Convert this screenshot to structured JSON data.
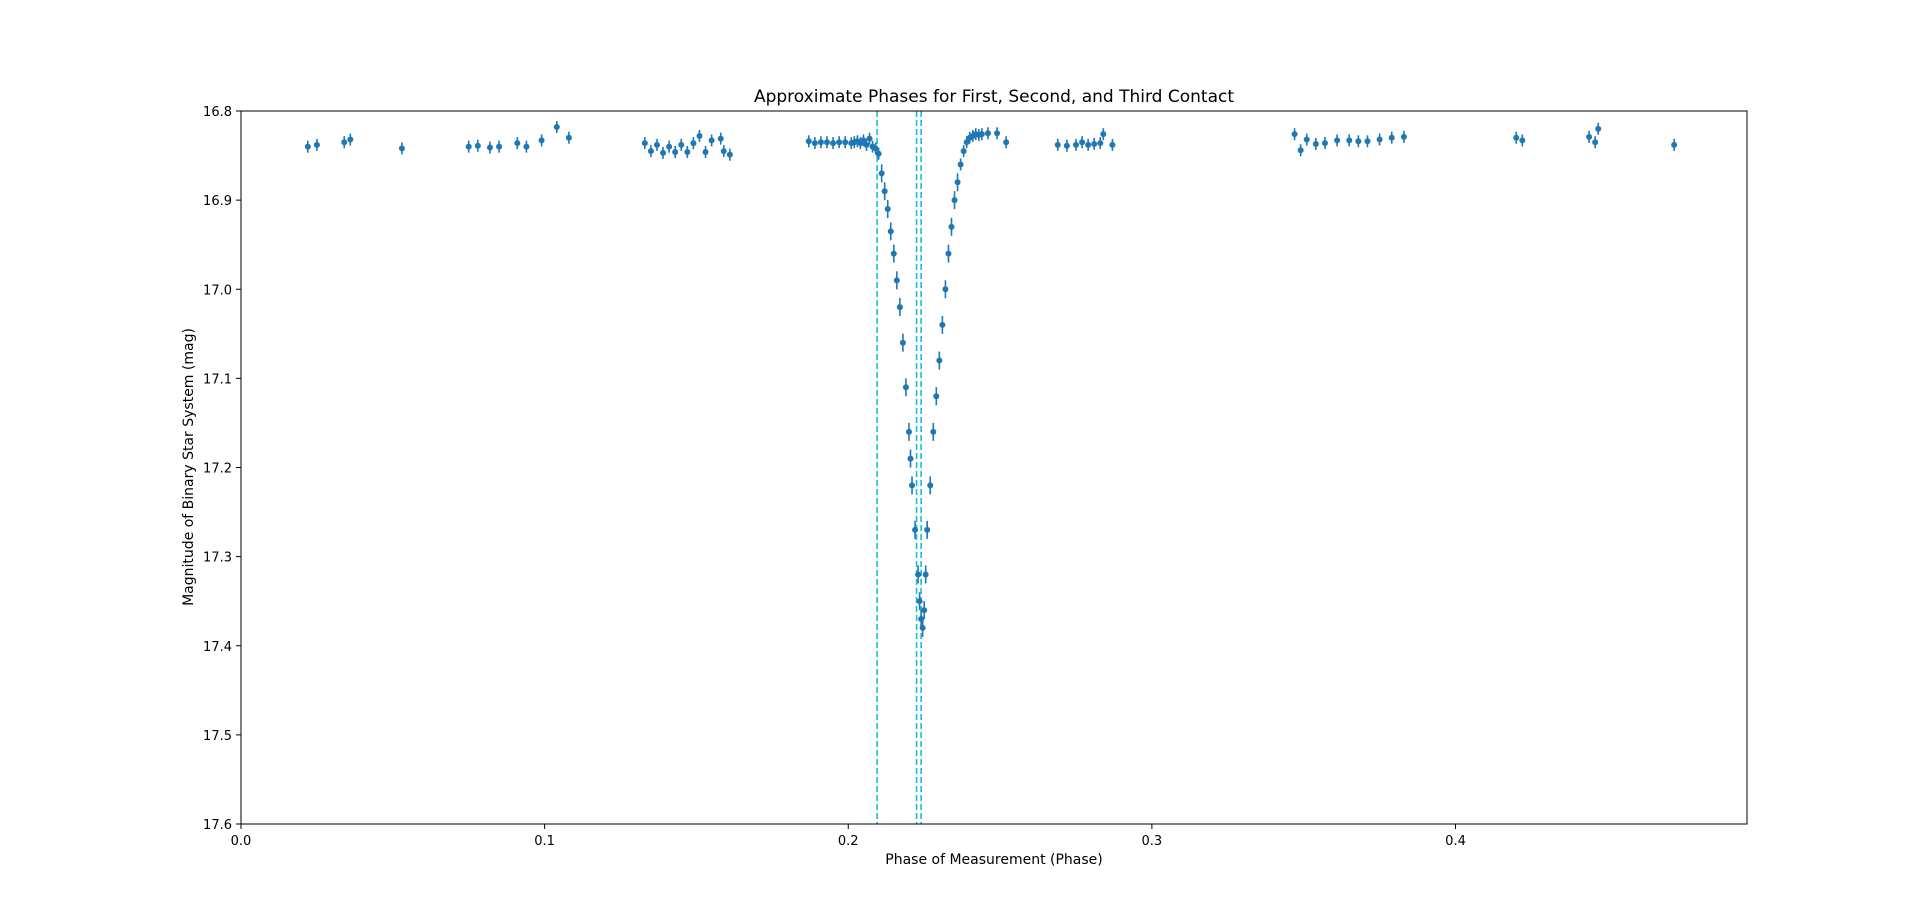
{
  "chart_data": {
    "type": "scatter",
    "title": "Approximate Phases for First, Second, and Third Contact",
    "xlabel": "Phase of Measurement (Phase)",
    "ylabel": "Magnitude of Binary Star System (mag)",
    "xlim": [
      0.0,
      0.496
    ],
    "ylim": [
      16.8,
      17.6
    ],
    "y_inverted": true,
    "x_ticks": [
      "0.0",
      "0.1",
      "0.2",
      "0.3",
      "0.4"
    ],
    "y_ticks": [
      "16.8",
      "16.9",
      "17.0",
      "17.1",
      "17.2",
      "17.3",
      "17.4",
      "17.5",
      "17.6"
    ],
    "grid": false,
    "legend": "none",
    "colors": {
      "points": "#1f77b4",
      "contact_lines": "#17becf"
    },
    "contact_lines": [
      0.2095,
      0.2225,
      0.224
    ],
    "series": [
      {
        "points": [
          [
            0.022,
            16.84
          ],
          [
            0.025,
            16.838
          ],
          [
            0.034,
            16.835
          ],
          [
            0.036,
            16.832
          ],
          [
            0.053,
            16.842
          ],
          [
            0.075,
            16.84
          ],
          [
            0.078,
            16.839
          ],
          [
            0.082,
            16.841
          ],
          [
            0.085,
            16.84
          ],
          [
            0.091,
            16.836
          ],
          [
            0.094,
            16.84
          ],
          [
            0.099,
            16.833
          ],
          [
            0.104,
            16.818
          ],
          [
            0.108,
            16.83
          ],
          [
            0.133,
            16.836
          ],
          [
            0.135,
            16.845
          ],
          [
            0.137,
            16.838
          ],
          [
            0.139,
            16.847
          ],
          [
            0.141,
            16.84
          ],
          [
            0.143,
            16.846
          ],
          [
            0.145,
            16.838
          ],
          [
            0.147,
            16.846
          ],
          [
            0.149,
            16.836
          ],
          [
            0.151,
            16.828
          ],
          [
            0.153,
            16.846
          ],
          [
            0.155,
            16.833
          ],
          [
            0.158,
            16.831
          ],
          [
            0.159,
            16.845
          ],
          [
            0.161,
            16.849
          ],
          [
            0.187,
            16.834
          ],
          [
            0.189,
            16.836
          ],
          [
            0.191,
            16.835
          ],
          [
            0.193,
            16.835
          ],
          [
            0.195,
            16.836
          ],
          [
            0.197,
            16.835
          ],
          [
            0.199,
            16.835
          ],
          [
            0.201,
            16.836
          ],
          [
            0.202,
            16.835
          ],
          [
            0.203,
            16.834
          ],
          [
            0.204,
            16.836
          ],
          [
            0.205,
            16.833
          ],
          [
            0.206,
            16.838
          ],
          [
            0.207,
            16.831
          ],
          [
            0.208,
            16.84
          ],
          [
            0.209,
            16.842
          ],
          [
            0.21,
            16.848
          ],
          [
            0.211,
            16.87
          ],
          [
            0.212,
            16.89
          ],
          [
            0.213,
            16.91
          ],
          [
            0.214,
            16.935
          ],
          [
            0.215,
            16.96
          ],
          [
            0.216,
            16.99
          ],
          [
            0.217,
            17.02
          ],
          [
            0.218,
            17.06
          ],
          [
            0.219,
            17.11
          ],
          [
            0.22,
            17.16
          ],
          [
            0.2205,
            17.19
          ],
          [
            0.221,
            17.22
          ],
          [
            0.222,
            17.27
          ],
          [
            0.223,
            17.32
          ],
          [
            0.2235,
            17.35
          ],
          [
            0.224,
            17.37
          ],
          [
            0.2245,
            17.38
          ],
          [
            0.225,
            17.36
          ],
          [
            0.2255,
            17.32
          ],
          [
            0.226,
            17.27
          ],
          [
            0.227,
            17.22
          ],
          [
            0.228,
            17.16
          ],
          [
            0.229,
            17.12
          ],
          [
            0.23,
            17.08
          ],
          [
            0.231,
            17.04
          ],
          [
            0.232,
            17.0
          ],
          [
            0.233,
            16.96
          ],
          [
            0.234,
            16.93
          ],
          [
            0.235,
            16.9
          ],
          [
            0.236,
            16.88
          ],
          [
            0.237,
            16.86
          ],
          [
            0.238,
            16.845
          ],
          [
            0.239,
            16.835
          ],
          [
            0.24,
            16.83
          ],
          [
            0.241,
            16.828
          ],
          [
            0.242,
            16.826
          ],
          [
            0.243,
            16.827
          ],
          [
            0.244,
            16.826
          ],
          [
            0.246,
            16.825
          ],
          [
            0.249,
            16.825
          ],
          [
            0.252,
            16.835
          ],
          [
            0.269,
            16.838
          ],
          [
            0.272,
            16.839
          ],
          [
            0.275,
            16.838
          ],
          [
            0.277,
            16.835
          ],
          [
            0.279,
            16.838
          ],
          [
            0.281,
            16.837
          ],
          [
            0.283,
            16.836
          ],
          [
            0.284,
            16.826
          ],
          [
            0.287,
            16.838
          ],
          [
            0.347,
            16.826
          ],
          [
            0.349,
            16.844
          ],
          [
            0.351,
            16.832
          ],
          [
            0.354,
            16.837
          ],
          [
            0.357,
            16.836
          ],
          [
            0.361,
            16.833
          ],
          [
            0.365,
            16.833
          ],
          [
            0.368,
            16.834
          ],
          [
            0.371,
            16.834
          ],
          [
            0.375,
            16.832
          ],
          [
            0.379,
            16.83
          ],
          [
            0.383,
            16.829
          ],
          [
            0.42,
            16.83
          ],
          [
            0.422,
            16.833
          ],
          [
            0.444,
            16.829
          ],
          [
            0.446,
            16.835
          ],
          [
            0.447,
            16.82
          ],
          [
            0.472,
            16.838
          ]
        ]
      }
    ]
  }
}
